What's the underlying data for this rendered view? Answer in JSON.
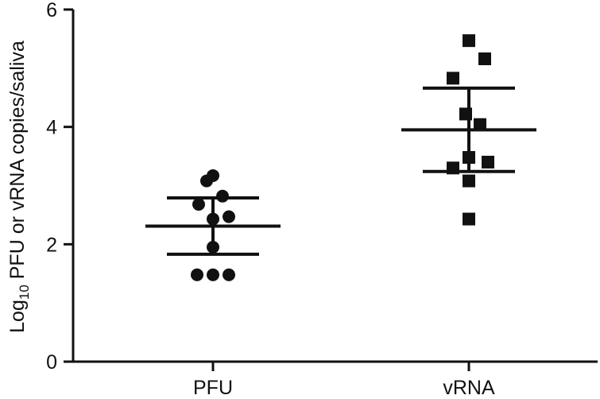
{
  "chart_data": {
    "type": "scatter",
    "ylabel": {
      "prefix": "Log",
      "subscript": "10",
      "suffix": " PFU or vRNA copies/saliva"
    },
    "categories": [
      "PFU",
      "vRNA"
    ],
    "ylim": [
      0,
      6
    ],
    "yticks": [
      "0",
      "2",
      "4",
      "6"
    ],
    "grid": false,
    "series": [
      {
        "category": "PFU",
        "marker": "circle",
        "points": [
          {
            "offset": -0.08,
            "y": 3.08
          },
          {
            "offset": 0.0,
            "y": 3.17
          },
          {
            "offset": -0.18,
            "y": 2.68
          },
          {
            "offset": 0.12,
            "y": 2.82
          },
          {
            "offset": 0.0,
            "y": 2.43
          },
          {
            "offset": 0.2,
            "y": 2.47
          },
          {
            "offset": 0.0,
            "y": 1.95
          },
          {
            "offset": -0.2,
            "y": 1.48
          },
          {
            "offset": 0.0,
            "y": 1.48
          },
          {
            "offset": 0.2,
            "y": 1.48
          }
        ],
        "mean": 2.31,
        "error_low": 1.83,
        "error_high": 2.79
      },
      {
        "category": "vRNA",
        "marker": "square",
        "points": [
          {
            "offset": 0.0,
            "y": 5.47
          },
          {
            "offset": 0.2,
            "y": 5.16
          },
          {
            "offset": -0.2,
            "y": 4.83
          },
          {
            "offset": -0.04,
            "y": 4.22
          },
          {
            "offset": 0.14,
            "y": 4.04
          },
          {
            "offset": -0.2,
            "y": 3.3
          },
          {
            "offset": 0.0,
            "y": 3.48
          },
          {
            "offset": 0.24,
            "y": 3.4
          },
          {
            "offset": 0.0,
            "y": 3.08
          },
          {
            "offset": 0.0,
            "y": 2.43
          }
        ],
        "mean": 3.95,
        "error_low": 3.24,
        "error_high": 4.66
      }
    ],
    "colors": {
      "marker": "#111111",
      "axis": "#111111"
    }
  }
}
